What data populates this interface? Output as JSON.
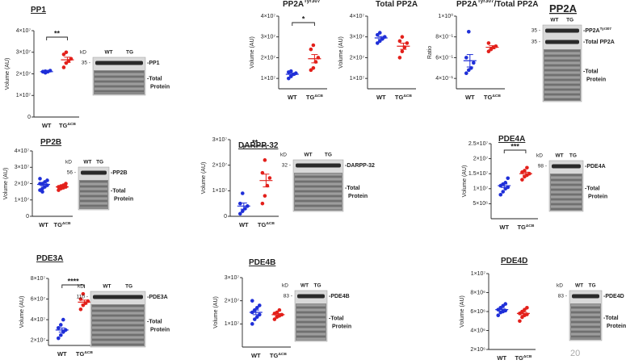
{
  "chart_data": [
    {
      "type": "strip",
      "title": [
        "PP1"
      ],
      "title_underline": true,
      "ylabel": "Volume (AU)",
      "ylim": [
        0,
        40000000
      ],
      "yticks": [
        0,
        {
          "value": 10000000,
          "label": "1×10⁷"
        },
        {
          "value": 20000000,
          "label": "2×10⁷"
        },
        {
          "value": 30000000,
          "label": "3×10⁷"
        },
        {
          "value": 40000000,
          "label": "4×10⁷"
        }
      ],
      "categories": [
        [
          "WT"
        ],
        [
          "TG",
          "ΔCB"
        ]
      ],
      "series": [
        {
          "color": "#1f2fd8",
          "values": [
            21000000,
            20500000,
            21000000,
            21500000,
            21000000,
            21200000
          ],
          "mean": 21000000,
          "sem": 200000
        },
        {
          "color": "#e3201b",
          "values": [
            23000000,
            25000000,
            26000000,
            27000000,
            29000000,
            30000000
          ],
          "mean": 26500000,
          "sem": 1200000
        }
      ],
      "significance": "**",
      "blot": {
        "kd_label": "kD",
        "lanes": [
          "WT",
          "TG"
        ],
        "bands": [
          {
            "mw": "35 -",
            "label": [
              "-PP1"
            ]
          }
        ],
        "total_label": [
          "-Total",
          "Protein"
        ]
      }
    },
    {
      "type": "strip",
      "title": [
        "PP2A",
        "Tyr307"
      ],
      "title_underline": false,
      "ylabel": "Volume (AU)",
      "ylim": [
        5000000,
        40000000
      ],
      "yticks": [
        {
          "value": 10000000,
          "label": "1×10⁷"
        },
        {
          "value": 20000000,
          "label": "2×10⁷"
        },
        {
          "value": 30000000,
          "label": "3×10⁷"
        },
        {
          "value": 40000000,
          "label": "4×10⁷"
        }
      ],
      "categories": [
        [
          "WT"
        ],
        [
          "TG",
          "ΔCB"
        ]
      ],
      "series": [
        {
          "color": "#1f2fd8",
          "values": [
            10000000,
            11000000,
            12000000,
            12500000,
            13000000,
            13500000
          ],
          "mean": 12000000,
          "sem": 500000
        },
        {
          "color": "#e3201b",
          "values": [
            14000000,
            15000000,
            18000000,
            20000000,
            24000000,
            26000000
          ],
          "mean": 19500000,
          "sem": 2000000
        }
      ],
      "significance": "*"
    },
    {
      "type": "strip",
      "title": [
        "Total PP2A"
      ],
      "title_underline": false,
      "ylabel": "Volume (AU)",
      "ylim": [
        5000000,
        40000000
      ],
      "yticks": [
        {
          "value": 10000000,
          "label": "1×10⁷"
        },
        {
          "value": 20000000,
          "label": "2×10⁷"
        },
        {
          "value": 30000000,
          "label": "3×10⁷"
        },
        {
          "value": 40000000,
          "label": "4×10⁷"
        }
      ],
      "categories": [
        [
          "WT"
        ],
        [
          "TG",
          "ΔCB"
        ]
      ],
      "series": [
        {
          "color": "#1f2fd8",
          "values": [
            27000000,
            28000000,
            29000000,
            30000000,
            31000000,
            32000000
          ],
          "mean": 29500000,
          "sem": 700000
        },
        {
          "color": "#e3201b",
          "values": [
            20000000,
            23000000,
            25000000,
            27000000,
            28000000,
            30000000
          ],
          "mean": 25500000,
          "sem": 1500000
        }
      ]
    },
    {
      "type": "strip",
      "title": [
        "PP2A",
        "Tyr307",
        "/Total PP2A"
      ],
      "title_underline": false,
      "ylabel": "Ratio",
      "ylim": [
        0.3,
        1.0
      ],
      "yticks": [
        {
          "value": 0.4,
          "label": "4×10⁻¹"
        },
        {
          "value": 0.6,
          "label": "6×10⁻¹"
        },
        {
          "value": 0.8,
          "label": "8×10⁻¹"
        },
        {
          "value": 1,
          "label": "1×10⁰"
        }
      ],
      "categories": [
        [
          "WT"
        ],
        [
          "TG",
          "ΔCB"
        ]
      ],
      "series": [
        {
          "color": "#1f2fd8",
          "values": [
            0.45,
            0.48,
            0.5,
            0.55,
            0.6,
            0.85
          ],
          "mean": 0.57,
          "sem": 0.06
        },
        {
          "color": "#e3201b",
          "values": [
            0.66,
            0.68,
            0.7,
            0.71,
            0.74
          ],
          "mean": 0.7,
          "sem": 0.015
        }
      ]
    },
    {
      "type": "blot",
      "title": [
        "PP2A"
      ],
      "title_underline": true,
      "blot": {
        "lanes": [
          "WT",
          "TG"
        ],
        "bands": [
          {
            "mw": "35 -",
            "label": [
              "-PP2A",
              "Tyr307"
            ]
          },
          {
            "mw": "35 -",
            "label": [
              "-Total PP2A"
            ]
          }
        ],
        "total_label": [
          "-Total",
          "Protein"
        ]
      }
    },
    {
      "type": "strip",
      "title": [
        "PP2B"
      ],
      "title_underline": true,
      "ylabel": "Volume (AU)",
      "ylim": [
        0,
        40000000
      ],
      "yticks": [
        0,
        {
          "value": 10000000,
          "label": "1×10⁷"
        },
        {
          "value": 20000000,
          "label": "2×10⁷"
        },
        {
          "value": 30000000,
          "label": "3×10⁷"
        },
        {
          "value": 40000000,
          "label": "4×10⁷"
        }
      ],
      "categories": [
        [
          "WT"
        ],
        [
          "TG",
          "ΔCB"
        ]
      ],
      "series": [
        {
          "color": "#1f2fd8",
          "values": [
            16000000,
            17000000,
            18000000,
            19000000,
            20000000,
            20000000,
            21000000,
            22000000,
            23000000,
            15000000
          ],
          "mean": 19500000,
          "sem": 800000
        },
        {
          "color": "#e3201b",
          "values": [
            16000000,
            17000000,
            17500000,
            18000000,
            18000000,
            18500000,
            19000000,
            20000000
          ],
          "mean": 18000000,
          "sem": 400000
        }
      ],
      "blot": {
        "kd_label": "kD",
        "lanes": [
          "WT",
          "TG"
        ],
        "bands": [
          {
            "mw": "56 -",
            "label": [
              "-PP2B"
            ]
          }
        ],
        "total_label": [
          "-Total",
          "Protein"
        ]
      }
    },
    {
      "type": "strip",
      "title": [
        "DARPP-32"
      ],
      "title_underline": true,
      "ylabel": "Volume (AU)",
      "ylim": [
        0,
        30000000
      ],
      "yticks": [
        0,
        {
          "value": 10000000,
          "label": "1×10⁷"
        },
        {
          "value": 20000000,
          "label": "2×10⁷"
        },
        {
          "value": 30000000,
          "label": "3×10⁷"
        }
      ],
      "categories": [
        [
          "WT"
        ],
        [
          "TG",
          "ΔCB"
        ]
      ],
      "series": [
        {
          "color": "#1f2fd8",
          "values": [
            1000000,
            2000000,
            3000000,
            4000000,
            5000000,
            9000000
          ],
          "mean": 4000000,
          "sem": 1200000
        },
        {
          "color": "#e3201b",
          "values": [
            5000000,
            8000000,
            12000000,
            15000000,
            17000000,
            22000000
          ],
          "mean": 14000000,
          "sem": 2500000
        }
      ],
      "significance": "**",
      "blot": {
        "kd_label": "kD",
        "lanes": [
          "WT",
          "TG"
        ],
        "bands": [
          {
            "mw": "32 -",
            "label": [
              "-DARPP-32"
            ]
          }
        ],
        "total_label": [
          "-Total",
          "Protein"
        ]
      }
    },
    {
      "type": "strip",
      "title": [
        "PDE4A"
      ],
      "title_underline": true,
      "ylabel": "Volume (AU)",
      "ylim": [
        0,
        25000000
      ],
      "yticks": [
        {
          "value": 5000000,
          "label": "5×10⁶"
        },
        {
          "value": 10000000,
          "label": "1×10⁷"
        },
        {
          "value": 15000000,
          "label": "1.5×10⁷"
        },
        {
          "value": 20000000,
          "label": "2×10⁷"
        },
        {
          "value": 25000000,
          "label": "2.5×10⁷"
        }
      ],
      "categories": [
        [
          "WT"
        ],
        [
          "TG",
          "ΔCB"
        ]
      ],
      "series": [
        {
          "color": "#1f2fd8",
          "values": [
            8000000,
            9000000,
            10000000,
            10500000,
            11000000,
            11500000,
            12000000,
            13500000
          ],
          "mean": 11000000,
          "sem": 600000
        },
        {
          "color": "#e3201b",
          "values": [
            13000000,
            14000000,
            14500000,
            15000000,
            15500000,
            16000000,
            17000000
          ],
          "mean": 15000000,
          "sem": 500000
        }
      ],
      "significance": "***",
      "blot": {
        "kd_label": "kD",
        "lanes": [
          "WT",
          "TG"
        ],
        "bands": [
          {
            "mw": "98 -",
            "label": [
              "-PDE4A"
            ]
          }
        ],
        "total_label": [
          "-Total",
          "Protein"
        ]
      }
    },
    {
      "type": "strip",
      "title": [
        "PDE3A"
      ],
      "title_underline": true,
      "ylabel": "Volume (AU)",
      "ylim": [
        15000000,
        80000000
      ],
      "yticks": [
        {
          "value": 20000000,
          "label": "2×10⁷"
        },
        {
          "value": 40000000,
          "label": "4×10⁷"
        },
        {
          "value": 60000000,
          "label": "6×10⁷"
        },
        {
          "value": 80000000,
          "label": "8×10⁷"
        }
      ],
      "categories": [
        [
          "WT"
        ],
        [
          "TG",
          "ΔCB"
        ]
      ],
      "series": [
        {
          "color": "#1f2fd8",
          "values": [
            22000000,
            25000000,
            28000000,
            30000000,
            32000000,
            35000000,
            40000000
          ],
          "mean": 30000000,
          "sem": 2000000
        },
        {
          "color": "#e3201b",
          "values": [
            50000000,
            54000000,
            56000000,
            58000000,
            60000000,
            65000000
          ],
          "mean": 57000000,
          "sem": 2000000
        }
      ],
      "significance": "****",
      "blot": {
        "kd_label": "kD",
        "lanes": [
          "WT",
          "TG"
        ],
        "bands": [
          {
            "mw": "110 -",
            "label": [
              "-PDE3A"
            ]
          }
        ],
        "total_label": [
          "-Total",
          "Protein"
        ]
      }
    },
    {
      "type": "strip",
      "title": [
        "PDE4B"
      ],
      "title_underline": true,
      "ylabel": "Volume (AU)",
      "ylim": [
        0,
        30000000
      ],
      "yticks": [
        {
          "value": 10000000,
          "label": "1×10⁷"
        },
        {
          "value": 20000000,
          "label": "2×10⁷"
        },
        {
          "value": 30000000,
          "label": "3×10⁷"
        }
      ],
      "categories": [
        [
          "WT"
        ],
        [
          "TG",
          "ΔCB"
        ]
      ],
      "series": [
        {
          "color": "#1f2fd8",
          "values": [
            10000000,
            12000000,
            13000000,
            14000000,
            15000000,
            16000000,
            17000000,
            18000000,
            20000000
          ],
          "mean": 15000000,
          "sem": 1000000
        },
        {
          "color": "#e3201b",
          "values": [
            12000000,
            13000000,
            13500000,
            14000000,
            14500000,
            15000000,
            16000000
          ],
          "mean": 14000000,
          "sem": 500000
        }
      ],
      "blot": {
        "kd_label": "kD",
        "lanes": [
          "WT",
          "TG"
        ],
        "bands": [
          {
            "mw": "83 -",
            "label": [
              "-PDE4B"
            ]
          }
        ],
        "total_label": [
          "-Total",
          "Protein"
        ]
      }
    },
    {
      "type": "strip",
      "title": [
        "PDE4D"
      ],
      "title_underline": true,
      "ylabel": "Volume (AU)",
      "ylim": [
        2000000,
        10000000
      ],
      "yticks": [
        {
          "value": 2000000,
          "label": "2×10⁶"
        },
        {
          "value": 4000000,
          "label": "4×10⁶"
        },
        {
          "value": 6000000,
          "label": "6×10⁶"
        },
        {
          "value": 8000000,
          "label": "8×10⁶"
        },
        {
          "value": 10000000,
          "label": "1×10⁷"
        }
      ],
      "categories": [
        [
          "WT"
        ],
        [
          "TG",
          "ΔCB"
        ]
      ],
      "series": [
        {
          "color": "#1f2fd8",
          "values": [
            5600000,
            5900000,
            6000000,
            6100000,
            6200000,
            6400000,
            6600000,
            6800000
          ],
          "mean": 6200000,
          "sem": 140000
        },
        {
          "color": "#e3201b",
          "values": [
            5000000,
            5400000,
            5600000,
            5700000,
            5800000,
            6000000,
            6200000,
            6400000
          ],
          "mean": 5800000,
          "sem": 150000
        }
      ],
      "blot": {
        "kd_label": "kD",
        "lanes": [
          "WT",
          "TG"
        ],
        "bands": [
          {
            "mw": "83 -",
            "label": [
              "-PDE4D"
            ]
          }
        ],
        "total_label": [
          "-Total",
          "Protein"
        ]
      }
    }
  ],
  "page_number": "20"
}
